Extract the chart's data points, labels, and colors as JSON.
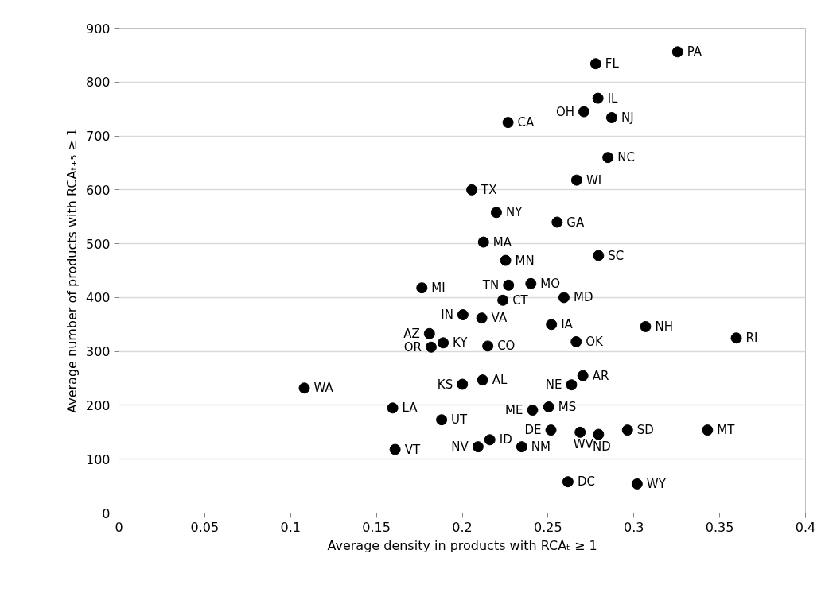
{
  "chart_data": {
    "type": "scatter",
    "xlabel": "Average density in products with RCAₜ ≥ 1",
    "ylabel": "Average number of products with RCAₜ₊₅ ≥ 1",
    "xlim": [
      0,
      0.4
    ],
    "xticks": [
      0,
      0.05,
      0.1,
      0.15,
      0.2,
      0.25,
      0.3,
      0.35,
      0.4
    ],
    "ylim": [
      0,
      900
    ],
    "yticks": [
      0,
      100,
      200,
      300,
      400,
      500,
      600,
      700,
      800,
      900
    ],
    "grid": "y",
    "marker": "circle",
    "series": [
      {
        "color": "#000000",
        "x": [
          0.3255,
          0.2778,
          0.2791,
          0.2709,
          0.2871,
          0.2267,
          0.2849,
          0.2667,
          0.2056,
          0.2199,
          0.2553,
          0.2124,
          0.2253,
          0.2794,
          0.227,
          0.24,
          0.2237,
          0.2593,
          0.2114,
          0.252,
          0.3068,
          0.3597,
          0.2664,
          0.2149,
          0.2703,
          0.2637,
          0.2001,
          0.2119,
          0.241,
          0.2504,
          0.2517,
          0.2687,
          0.2794,
          0.2963,
          0.3429,
          0.2161,
          0.2347,
          0.2092,
          0.2616,
          0.3019,
          0.1765,
          0.2004,
          0.1809,
          0.1889,
          0.1819,
          0.108,
          0.1595,
          0.188,
          0.1609
        ],
        "values": [
          856,
          834,
          770,
          745,
          734,
          725,
          660,
          618,
          600,
          558,
          540,
          503,
          469,
          478,
          423,
          426,
          395,
          400,
          362,
          350,
          346,
          325,
          318,
          310,
          255,
          238,
          239,
          247,
          191,
          197,
          154,
          150,
          146,
          154,
          154,
          136,
          123,
          123,
          58,
          54,
          418,
          368,
          333,
          316,
          308,
          232,
          195,
          173,
          118
        ]
      }
    ],
    "annotations": [
      {
        "text": "PA",
        "x": 0.3255,
        "y": 856
      },
      {
        "text": "FL",
        "x": 0.2778,
        "y": 834
      },
      {
        "text": "IL",
        "x": 0.2791,
        "y": 770
      },
      {
        "text": "OH",
        "x": 0.2709,
        "y": 745
      },
      {
        "text": "NJ",
        "x": 0.2871,
        "y": 734
      },
      {
        "text": "CA",
        "x": 0.2267,
        "y": 725
      },
      {
        "text": "NC",
        "x": 0.2849,
        "y": 660
      },
      {
        "text": "WI",
        "x": 0.2667,
        "y": 618
      },
      {
        "text": "TX",
        "x": 0.2056,
        "y": 600
      },
      {
        "text": "NY",
        "x": 0.2199,
        "y": 558
      },
      {
        "text": "GA",
        "x": 0.2553,
        "y": 540
      },
      {
        "text": "MA",
        "x": 0.2124,
        "y": 503
      },
      {
        "text": "MN",
        "x": 0.2253,
        "y": 469
      },
      {
        "text": "SC",
        "x": 0.2794,
        "y": 478
      },
      {
        "text": "TN",
        "x": 0.227,
        "y": 423
      },
      {
        "text": "MO",
        "x": 0.24,
        "y": 426
      },
      {
        "text": "CT",
        "x": 0.2237,
        "y": 395
      },
      {
        "text": "MD",
        "x": 0.2593,
        "y": 400
      },
      {
        "text": "VA",
        "x": 0.2114,
        "y": 362
      },
      {
        "text": "IA",
        "x": 0.252,
        "y": 350
      },
      {
        "text": "NH",
        "x": 0.3068,
        "y": 346
      },
      {
        "text": "RI",
        "x": 0.3597,
        "y": 325
      },
      {
        "text": "OK",
        "x": 0.2664,
        "y": 318
      },
      {
        "text": "CO",
        "x": 0.2149,
        "y": 310
      },
      {
        "text": "AR",
        "x": 0.2703,
        "y": 255
      },
      {
        "text": "NE",
        "x": 0.2637,
        "y": 238
      },
      {
        "text": "KS",
        "x": 0.2001,
        "y": 239
      },
      {
        "text": "AL",
        "x": 0.2119,
        "y": 247
      },
      {
        "text": "ME",
        "x": 0.241,
        "y": 191
      },
      {
        "text": "MS",
        "x": 0.2504,
        "y": 197
      },
      {
        "text": "DE",
        "x": 0.2517,
        "y": 154
      },
      {
        "text": "WV",
        "x": 0.2687,
        "y": 150
      },
      {
        "text": "ND",
        "x": 0.2794,
        "y": 146
      },
      {
        "text": "SD",
        "x": 0.2963,
        "y": 154
      },
      {
        "text": "MT",
        "x": 0.3429,
        "y": 154
      },
      {
        "text": "ID",
        "x": 0.2161,
        "y": 136
      },
      {
        "text": "NM",
        "x": 0.2347,
        "y": 123
      },
      {
        "text": "NV",
        "x": 0.2092,
        "y": 123
      },
      {
        "text": "DC",
        "x": 0.2616,
        "y": 58
      },
      {
        "text": "WY",
        "x": 0.3019,
        "y": 54
      },
      {
        "text": "MI",
        "x": 0.1765,
        "y": 418
      },
      {
        "text": "IN",
        "x": 0.2004,
        "y": 368
      },
      {
        "text": "AZ",
        "x": 0.1809,
        "y": 333
      },
      {
        "text": "KY",
        "x": 0.1889,
        "y": 316
      },
      {
        "text": "OR",
        "x": 0.1819,
        "y": 308
      },
      {
        "text": "WA",
        "x": 0.108,
        "y": 232
      },
      {
        "text": "LA",
        "x": 0.1595,
        "y": 195
      },
      {
        "text": "UT",
        "x": 0.188,
        "y": 173
      },
      {
        "text": "VT",
        "x": 0.1609,
        "y": 118
      }
    ]
  }
}
